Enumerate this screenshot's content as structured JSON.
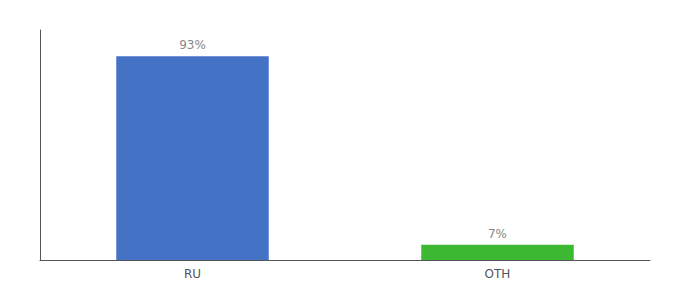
{
  "chart_data": {
    "type": "bar",
    "categories": [
      "RU",
      "OTH"
    ],
    "values": [
      93,
      7
    ],
    "value_labels": [
      "93%",
      "7%"
    ],
    "colors": [
      "#4472c4",
      "#3cb832"
    ],
    "ylim": [
      0,
      105
    ],
    "data_labels": true,
    "tick_labels": "x",
    "grid": false
  }
}
